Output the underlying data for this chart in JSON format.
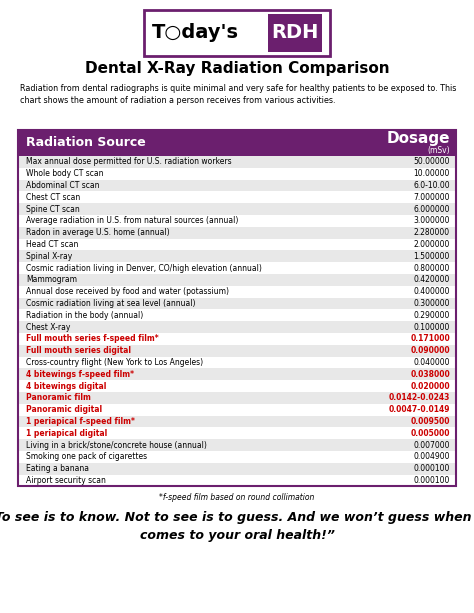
{
  "title": "Dental X-Ray Radiation Comparison",
  "subtitle": "Radiation from dental radiographs is quite minimal and very safe for healthy patients to be exposed to. This\nchart shows the amount of radiation a person receives from various activities.",
  "header_bg": "#6b1f6e",
  "header_text_color": "#ffffff",
  "col1_header": "Radiation Source",
  "col2_header": "Dosage",
  "col2_subheader": "(mSv)",
  "footnote": "*f-speed film based on round collimation",
  "quote": "“To see is to know. Not to see is to guess. And we won’t guess when it\ncomes to your oral health!”",
  "rows": [
    {
      "label": "Max annual dose permitted for U.S. radiation workers",
      "value": "50.00000",
      "highlight": false,
      "shaded": true
    },
    {
      "label": "Whole body CT scan",
      "value": "10.00000",
      "highlight": false,
      "shaded": false
    },
    {
      "label": "Abdominal CT scan",
      "value": "6.0-10.00",
      "highlight": false,
      "shaded": true
    },
    {
      "label": "Chest CT scan",
      "value": "7.000000",
      "highlight": false,
      "shaded": false
    },
    {
      "label": "Spine CT scan",
      "value": "6.000000",
      "highlight": false,
      "shaded": true
    },
    {
      "label": "Average radiation in U.S. from natural sources (annual)",
      "value": "3.000000",
      "highlight": false,
      "shaded": false
    },
    {
      "label": "Radon in average U.S. home (annual)",
      "value": "2.280000",
      "highlight": false,
      "shaded": true
    },
    {
      "label": "Head CT scan",
      "value": "2.000000",
      "highlight": false,
      "shaded": false
    },
    {
      "label": "Spinal X-ray",
      "value": "1.500000",
      "highlight": false,
      "shaded": true
    },
    {
      "label": "Cosmic radiation living in Denver, CO/high elevation (annual)",
      "value": "0.800000",
      "highlight": false,
      "shaded": false
    },
    {
      "label": "Mammogram",
      "value": "0.420000",
      "highlight": false,
      "shaded": true
    },
    {
      "label": "Annual dose received by food and water (potassium)",
      "value": "0.400000",
      "highlight": false,
      "shaded": false
    },
    {
      "label": "Cosmic radiation living at sea level (annual)",
      "value": "0.300000",
      "highlight": false,
      "shaded": true
    },
    {
      "label": "Radiation in the body (annual)",
      "value": "0.290000",
      "highlight": false,
      "shaded": false
    },
    {
      "label": "Chest X-ray",
      "value": "0.100000",
      "highlight": false,
      "shaded": true
    },
    {
      "label": "Full mouth series f-speed film*",
      "value": "0.171000",
      "highlight": true,
      "shaded": false
    },
    {
      "label": "Full mouth series digital",
      "value": "0.090000",
      "highlight": true,
      "shaded": true
    },
    {
      "label": "Cross-country flight (New York to Los Angeles)",
      "value": "0.040000",
      "highlight": false,
      "shaded": false
    },
    {
      "label": "4 bitewings f-speed film*",
      "value": "0.038000",
      "highlight": true,
      "shaded": true
    },
    {
      "label": "4 bitewings digital",
      "value": "0.020000",
      "highlight": true,
      "shaded": false
    },
    {
      "label": "Panoramic film",
      "value": "0.0142-0.0243",
      "highlight": true,
      "shaded": true
    },
    {
      "label": "Panoramic digital",
      "value": "0.0047-0.0149",
      "highlight": true,
      "shaded": false
    },
    {
      "label": "1 periapical f-speed film*",
      "value": "0.009500",
      "highlight": true,
      "shaded": true
    },
    {
      "label": "1 periapical digital",
      "value": "0.005000",
      "highlight": true,
      "shaded": false
    },
    {
      "label": "Living in a brick/stone/concrete house (annual)",
      "value": "0.007000",
      "highlight": false,
      "shaded": true
    },
    {
      "label": "Smoking one pack of cigarettes",
      "value": "0.004900",
      "highlight": false,
      "shaded": false
    },
    {
      "label": "Eating a banana",
      "value": "0.000100",
      "highlight": false,
      "shaded": true
    },
    {
      "label": "Airport security scan",
      "value": "0.000100",
      "highlight": false,
      "shaded": false
    }
  ],
  "highlight_color": "#cc0000",
  "shaded_color": "#e8e8e8",
  "white_color": "#ffffff",
  "table_border_color": "#6b1f6e",
  "logo_border_color": "#6b1f6e",
  "logo_rdh_bg": "#6b1f6e"
}
